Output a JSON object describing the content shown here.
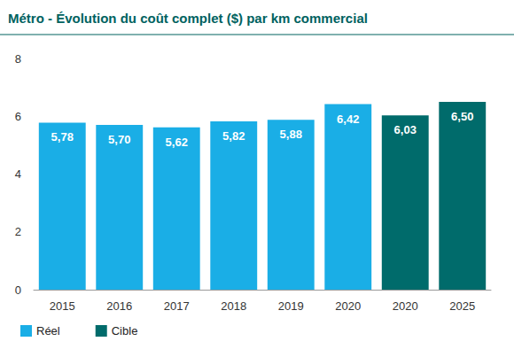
{
  "chart_data": {
    "type": "bar",
    "title": "Métro - Évolution du coût complet ($) par km commercial",
    "categories": [
      "2015",
      "2016",
      "2017",
      "2018",
      "2019",
      "2020",
      "2020",
      "2025"
    ],
    "series": [
      {
        "name": "Réel",
        "color": "#1aaee6",
        "values": [
          5.78,
          5.7,
          5.62,
          5.82,
          5.88,
          6.42,
          null,
          null
        ],
        "value_labels": [
          "5,78",
          "5,70",
          "5,62",
          "5,82",
          "5,88",
          "6,42",
          null,
          null
        ]
      },
      {
        "name": "Cible",
        "color": "#006b6b",
        "values": [
          null,
          null,
          null,
          null,
          null,
          null,
          6.03,
          6.5
        ],
        "value_labels": [
          null,
          null,
          null,
          null,
          null,
          null,
          "6,03",
          "6,50"
        ]
      }
    ],
    "ylim": [
      0,
      8
    ],
    "yticks": [
      0,
      2,
      4,
      6,
      8
    ],
    "grid": false,
    "legend": "bottom-left",
    "data_labels": true
  }
}
